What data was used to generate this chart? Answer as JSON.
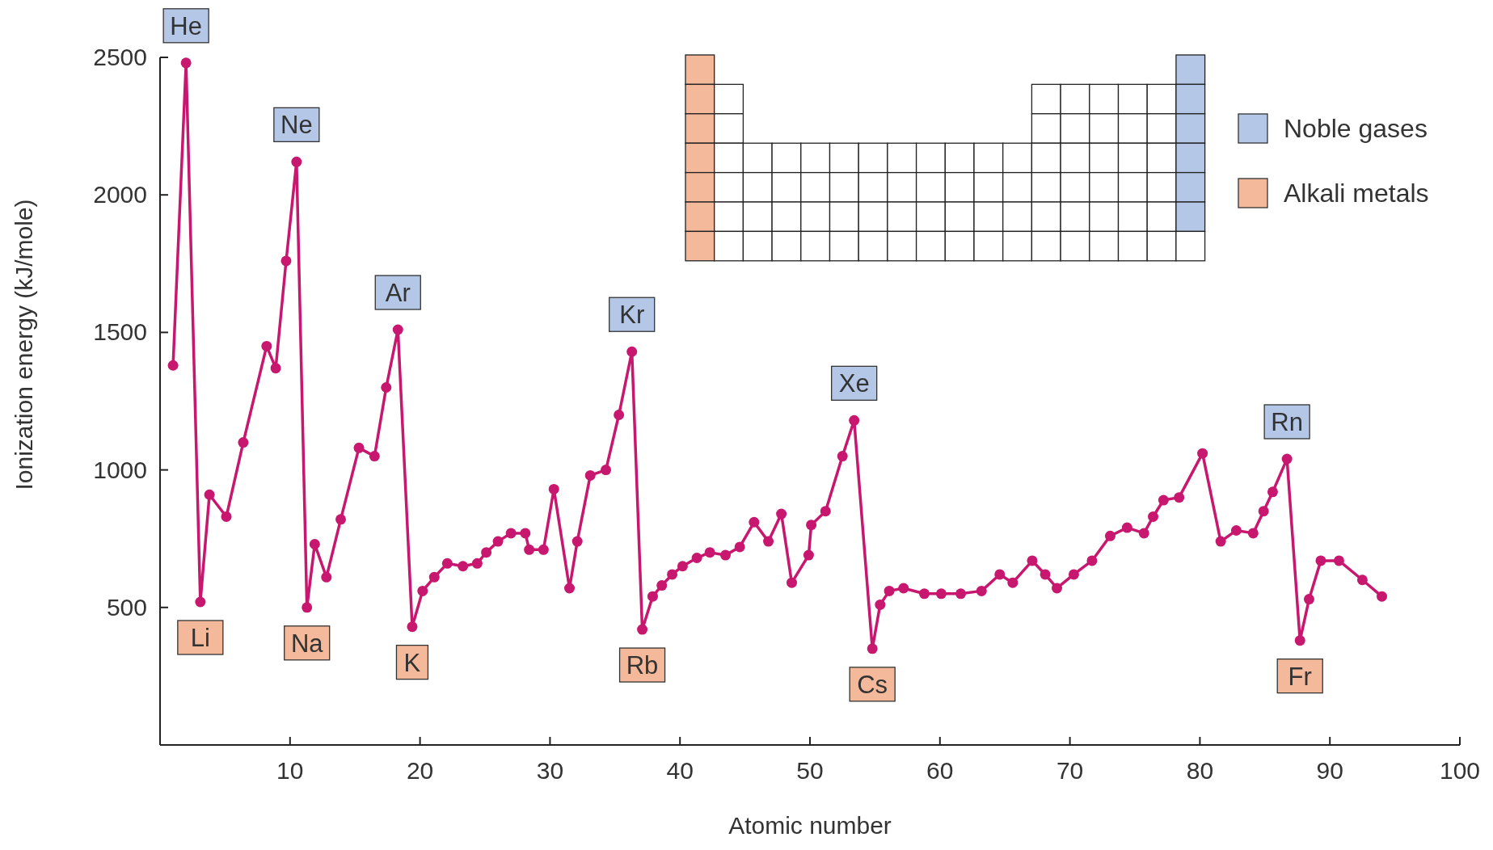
{
  "chart_data": {
    "type": "line",
    "xlabel": "Atomic number",
    "ylabel": "Ionization energy (kJ/mole)",
    "xlim": [
      0,
      100
    ],
    "xticks": [
      10,
      20,
      30,
      40,
      50,
      60,
      70,
      80,
      90,
      100
    ],
    "ylim": [
      0,
      2500
    ],
    "yticks": [
      500,
      1000,
      1500,
      2000,
      2500
    ],
    "grid": false,
    "marker": "circle",
    "line_style": "solid",
    "series": [
      {
        "color": "#c8176e",
        "x": [
          1.0,
          2.0,
          3.1,
          3.8,
          5.1,
          6.4,
          8.2,
          8.9,
          9.7,
          10.5,
          11.3,
          11.9,
          12.8,
          13.9,
          15.3,
          16.5,
          17.4,
          18.3,
          19.4,
          20.2,
          21.1,
          22.1,
          23.3,
          24.4,
          25.1,
          26.0,
          27.0,
          28.1,
          28.4,
          29.5,
          30.3,
          31.5,
          32.1,
          33.1,
          34.3,
          35.3,
          36.3,
          37.1,
          37.9,
          38.6,
          39.4,
          40.2,
          41.3,
          42.3,
          43.5,
          44.6,
          45.7,
          46.8,
          47.8,
          48.6,
          49.9,
          50.1,
          51.2,
          52.5,
          53.4,
          54.8,
          55.4,
          56.1,
          57.2,
          58.8,
          60.1,
          61.6,
          63.2,
          64.6,
          65.6,
          67.1,
          68.1,
          69.0,
          70.3,
          71.7,
          73.1,
          74.4,
          75.7,
          76.4,
          77.2,
          78.4,
          80.2,
          81.6,
          82.8,
          84.1,
          84.9,
          85.6,
          86.7,
          87.7,
          88.4,
          89.3,
          90.7,
          92.5,
          94.0
        ],
        "values": [
          1380,
          2480,
          520,
          910,
          830,
          1100,
          1450,
          1370,
          1760,
          2120,
          500,
          730,
          610,
          820,
          1080,
          1050,
          1300,
          1510,
          430,
          560,
          610,
          660,
          650,
          660,
          700,
          740,
          770,
          770,
          710,
          710,
          930,
          570,
          740,
          980,
          1000,
          1200,
          1430,
          420,
          540,
          580,
          620,
          650,
          680,
          700,
          690,
          720,
          810,
          740,
          840,
          590,
          690,
          800,
          850,
          1050,
          1180,
          350,
          510,
          560,
          570,
          550,
          550,
          550,
          560,
          620,
          590,
          670,
          620,
          570,
          620,
          670,
          760,
          790,
          770,
          830,
          890,
          900,
          1060,
          740,
          780,
          770,
          850,
          920,
          1040,
          380,
          530,
          670,
          670,
          600,
          540
        ]
      }
    ],
    "annotations": [
      "Noble gases",
      "Alkali metals",
      {
        "text": "He",
        "x": 2.0,
        "y": 2480
      },
      {
        "text": "Ne",
        "x": 10.5,
        "y": 2120
      },
      {
        "text": "Ar",
        "x": 18.3,
        "y": 1510
      },
      {
        "text": "Kr",
        "x": 36.3,
        "y": 1430
      },
      {
        "text": "Xe",
        "x": 53.4,
        "y": 1180
      },
      {
        "text": "Rn",
        "x": 86.7,
        "y": 1040
      },
      {
        "text": "Li",
        "x": 3.1,
        "y": 520
      },
      {
        "text": "Na",
        "x": 11.3,
        "y": 500
      },
      {
        "text": "K",
        "x": 19.4,
        "y": 430
      },
      {
        "text": "Rb",
        "x": 37.1,
        "y": 420
      },
      {
        "text": "Cs",
        "x": 54.8,
        "y": 350
      },
      {
        "text": "Fr",
        "x": 87.7,
        "y": 380
      }
    ]
  }
}
